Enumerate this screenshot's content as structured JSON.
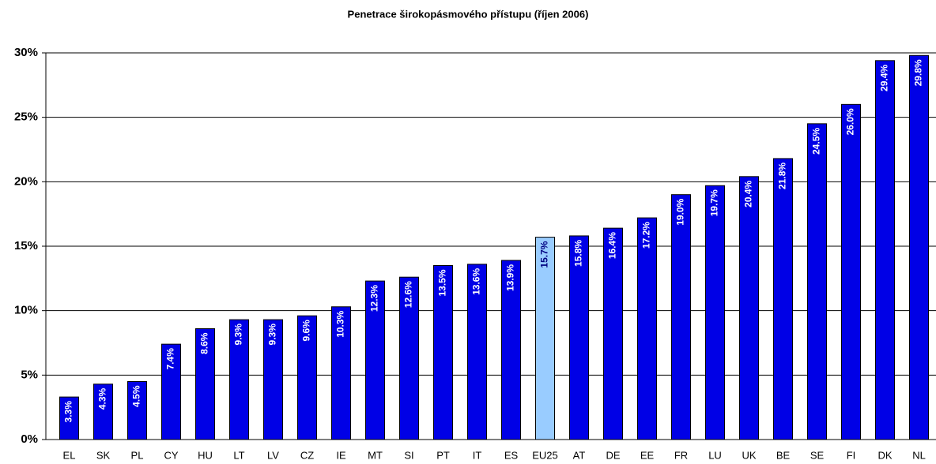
{
  "chart_data": {
    "type": "bar",
    "title": "Penetrace širokopásmového přístupu (říjen 2006)",
    "categories": [
      "EL",
      "SK",
      "PL",
      "CY",
      "HU",
      "LT",
      "LV",
      "CZ",
      "IE",
      "MT",
      "SI",
      "PT",
      "IT",
      "ES",
      "EU25",
      "AT",
      "DE",
      "EE",
      "FR",
      "LU",
      "UK",
      "BE",
      "SE",
      "FI",
      "DK",
      "NL"
    ],
    "values": [
      3.3,
      4.3,
      4.5,
      7.4,
      8.6,
      9.3,
      9.3,
      9.6,
      10.3,
      12.3,
      12.6,
      13.5,
      13.6,
      13.9,
      15.7,
      15.8,
      16.4,
      17.2,
      19.0,
      19.7,
      20.4,
      21.8,
      24.5,
      26.0,
      29.4,
      29.8
    ],
    "value_labels": [
      "3.3%",
      "4.3%",
      "4.5%",
      "7.4%",
      "8.6%",
      "9.3%",
      "9.3%",
      "9.6%",
      "10.3%",
      "12.3%",
      "12.6%",
      "13.5%",
      "13.6%",
      "13.9%",
      "15.7%",
      "15.8%",
      "16.4%",
      "17.2%",
      "19.0%",
      "19.7%",
      "20.4%",
      "21.8%",
      "24.5%",
      "26.0%",
      "29.4%",
      "29.8%"
    ],
    "colors": [
      "#0000e6",
      "#0000e6",
      "#0000e6",
      "#0000e6",
      "#0000e6",
      "#0000e6",
      "#0000e6",
      "#0000e6",
      "#0000e6",
      "#0000e6",
      "#0000e6",
      "#0000e6",
      "#0000e6",
      "#0000e6",
      "#99ccff",
      "#0000e6",
      "#0000e6",
      "#0000e6",
      "#0000e6",
      "#0000e6",
      "#0000e6",
      "#0000e6",
      "#0000e6",
      "#0000e6",
      "#0000e6",
      "#0000e6"
    ],
    "ylim": [
      0,
      30
    ],
    "yticks": [
      {
        "value": 0,
        "label": "0%"
      },
      {
        "value": 5,
        "label": "5%"
      },
      {
        "value": 10,
        "label": "10%"
      },
      {
        "value": 15,
        "label": "15%"
      },
      {
        "value": 20,
        "label": "20%"
      },
      {
        "value": 25,
        "label": "25%"
      },
      {
        "value": 30,
        "label": "30%"
      }
    ],
    "grid": true
  }
}
